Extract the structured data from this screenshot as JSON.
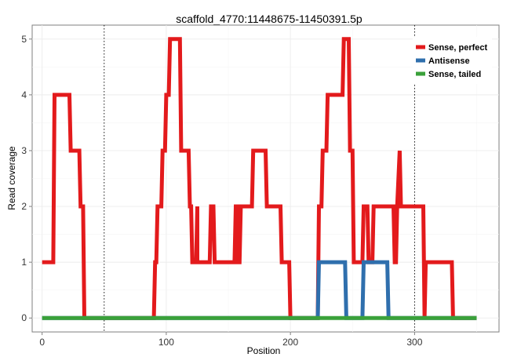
{
  "chart_data": {
    "type": "line",
    "title": "scaffold_4770:11448675-11450391.5p",
    "xlabel": "Position",
    "ylabel": "Read coverage",
    "xlim": [
      -8,
      368
    ],
    "ylim": [
      -0.25,
      5.25
    ],
    "x_ticks": [
      0,
      100,
      200,
      300
    ],
    "y_ticks": [
      0,
      1,
      2,
      3,
      4,
      5
    ],
    "grid": true,
    "legend_position": "top-right",
    "vlines": [
      50,
      300
    ],
    "series": [
      {
        "name": "Sense, perfect",
        "color": "#e31a1c",
        "points": [
          [
            0,
            1
          ],
          [
            9,
            1
          ],
          [
            10,
            4
          ],
          [
            22,
            4
          ],
          [
            23,
            3
          ],
          [
            30,
            3
          ],
          [
            31,
            2
          ],
          [
            33,
            2
          ],
          [
            34,
            0
          ],
          [
            90,
            0
          ],
          [
            91,
            1
          ],
          [
            92,
            1
          ],
          [
            93,
            2
          ],
          [
            96,
            2
          ],
          [
            97,
            3
          ],
          [
            99,
            3
          ],
          [
            100,
            4
          ],
          [
            102,
            4
          ],
          [
            103,
            5
          ],
          [
            111,
            5
          ],
          [
            112,
            3
          ],
          [
            118,
            3
          ],
          [
            119,
            2
          ],
          [
            120,
            2
          ],
          [
            121,
            1
          ],
          [
            124,
            1
          ],
          [
            125,
            2
          ],
          [
            125,
            1
          ],
          [
            135,
            1
          ],
          [
            136,
            2
          ],
          [
            138,
            2
          ],
          [
            139,
            1
          ],
          [
            155,
            1
          ],
          [
            156,
            2
          ],
          [
            157,
            2
          ],
          [
            158,
            1
          ],
          [
            159,
            1
          ],
          [
            160,
            2
          ],
          [
            169,
            2
          ],
          [
            170,
            3
          ],
          [
            180,
            3
          ],
          [
            181,
            2
          ],
          [
            192,
            2
          ],
          [
            193,
            1
          ],
          [
            199,
            1
          ],
          [
            200,
            0
          ],
          [
            222,
            0
          ],
          [
            223,
            2
          ],
          [
            225,
            2
          ],
          [
            226,
            3
          ],
          [
            229,
            3
          ],
          [
            230,
            4
          ],
          [
            242,
            4
          ],
          [
            243,
            5
          ],
          [
            247,
            5
          ],
          [
            248,
            3
          ],
          [
            250,
            3
          ],
          [
            251,
            1
          ],
          [
            258,
            1
          ],
          [
            259,
            2
          ],
          [
            262,
            2
          ],
          [
            263,
            1
          ],
          [
            266,
            1
          ],
          [
            267,
            2
          ],
          [
            283,
            2
          ],
          [
            284,
            1
          ],
          [
            285,
            1
          ],
          [
            286,
            2
          ],
          [
            288,
            3
          ],
          [
            289,
            2
          ],
          [
            307,
            2
          ],
          [
            308,
            0
          ],
          [
            309,
            1
          ],
          [
            330,
            1
          ],
          [
            331,
            0
          ],
          [
            350,
            0
          ]
        ]
      },
      {
        "name": "Antisense",
        "color": "#2f6fad",
        "points": [
          [
            0,
            0
          ],
          [
            222,
            0
          ],
          [
            223,
            1
          ],
          [
            244,
            1
          ],
          [
            245,
            0
          ],
          [
            258,
            0
          ],
          [
            259,
            1
          ],
          [
            278,
            1
          ],
          [
            279,
            0
          ],
          [
            350,
            0
          ]
        ]
      },
      {
        "name": "Sense, tailed",
        "color": "#3aa13a",
        "points": [
          [
            0,
            0
          ],
          [
            350,
            0
          ]
        ]
      }
    ]
  }
}
